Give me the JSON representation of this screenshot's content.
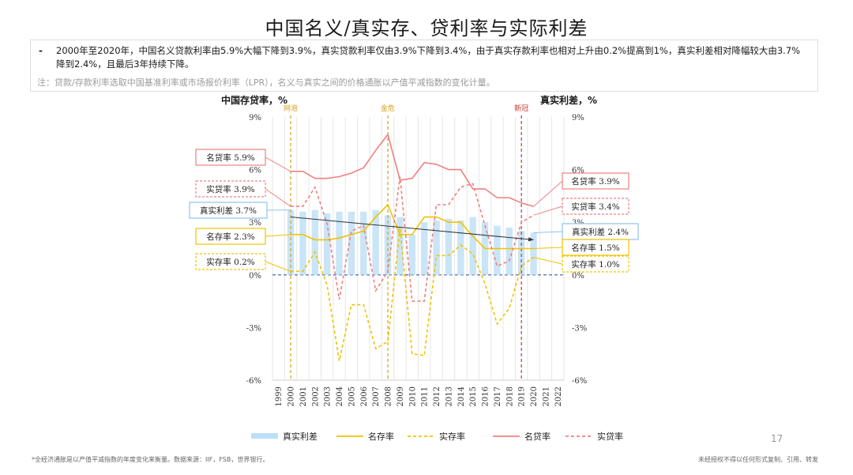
{
  "title": "中国名义/真实存、贷利率与实际利差",
  "note": {
    "bullet": "-",
    "main": "2000年至2020年，中国名义贷款利率由5.9%大幅下降到3.9%，真实贷款利率仅由3.9%下降到3.4%，由于真实存款利率也相对上升由0.2%提高到1%，真实利差相对降幅较大由3.7%降到2.4%，且最后3年持续下降。",
    "sub": "注：贷款/存款利率选取中国基准利率或市场报价利率（LPR），名义与真实之间的价格通胀以产值平减指数的变化计量。"
  },
  "footer": {
    "left": "*全经济通胀是以产值平减指数的年度变化来衡量。数据来源：IIF，FSB，世界银行。",
    "right": "未经授权不得以任何形式复制、引用、转发",
    "page": "17"
  },
  "chart_data": {
    "type": "line",
    "left_axis_title": "中国存贷率，%",
    "right_axis_title": "真实利差，%",
    "x": [
      "1999",
      "2000",
      "2001",
      "2002",
      "2003",
      "2004",
      "2005",
      "2006",
      "2007",
      "2008",
      "2009",
      "2010",
      "2011",
      "2012",
      "2013",
      "2014",
      "2015",
      "2016",
      "2017",
      "2018",
      "2019",
      "2020",
      "2021",
      "2022"
    ],
    "ylim": [
      -6,
      9
    ],
    "yticks": [
      "9%",
      "6%",
      "3%",
      "0%",
      "-3%",
      "-6%"
    ],
    "grid": true,
    "legend_position": "bottom",
    "events": [
      {
        "label": "网泡",
        "year": "2000",
        "color": "#d4a017"
      },
      {
        "label": "金危",
        "year": "2008",
        "color": "#d4a017"
      },
      {
        "label": "新冠",
        "year": "2019",
        "color": "#c0392b"
      }
    ],
    "series": [
      {
        "name": "真实利差",
        "kind": "bar",
        "color": "#bcdff5",
        "values": [
          null,
          3.7,
          3.6,
          3.7,
          3.5,
          3.6,
          3.6,
          3.6,
          3.7,
          3.4,
          3.3,
          2.3,
          3.0,
          3.1,
          3.2,
          3.1,
          3.3,
          3.0,
          2.8,
          2.7,
          2.5,
          2.4,
          null,
          null
        ]
      },
      {
        "name": "名存率",
        "kind": "line",
        "style": "solid",
        "color": "#f2c200",
        "values": [
          null,
          2.3,
          2.3,
          2.0,
          2.0,
          2.1,
          2.3,
          2.5,
          3.3,
          4.0,
          2.3,
          2.3,
          3.3,
          3.3,
          3.0,
          3.0,
          2.2,
          1.5,
          1.5,
          1.5,
          1.5,
          1.5,
          null,
          null
        ]
      },
      {
        "name": "实存率",
        "kind": "line",
        "style": "dashed",
        "color": "#f2c200",
        "values": [
          null,
          0.2,
          0.2,
          1.3,
          -0.6,
          -4.9,
          -1.7,
          -1.7,
          -4.2,
          -3.8,
          2.7,
          -4.5,
          -4.6,
          1.1,
          1.1,
          1.7,
          1.2,
          -0.5,
          -2.8,
          -1.9,
          0.5,
          1.0,
          null,
          null
        ]
      },
      {
        "name": "名贷率",
        "kind": "line",
        "style": "solid",
        "color": "#f08080",
        "values": [
          null,
          5.9,
          5.9,
          5.5,
          5.5,
          5.6,
          5.8,
          6.1,
          7.1,
          8.0,
          5.4,
          5.5,
          6.4,
          6.3,
          6.0,
          6.0,
          4.9,
          4.9,
          4.4,
          4.4,
          4.1,
          3.9,
          null,
          null
        ]
      },
      {
        "name": "实贷率",
        "kind": "line",
        "style": "dashed",
        "color": "#f08080",
        "values": [
          null,
          3.9,
          3.9,
          5.0,
          2.9,
          -1.4,
          2.5,
          2.8,
          -0.9,
          0.2,
          5.6,
          -1.5,
          -1.5,
          4.0,
          4.0,
          5.0,
          5.2,
          2.8,
          0.5,
          0.8,
          3.0,
          3.4,
          null,
          null
        ]
      }
    ],
    "trend": {
      "from": [
        "2000",
        3.3
      ],
      "to": [
        "2020",
        2.0
      ],
      "color": "#333333"
    },
    "annotations": [
      {
        "text": "名贷率 5.9%",
        "side": "left",
        "color": "#f08080",
        "style": "solid",
        "series": "名贷率"
      },
      {
        "text": "实贷率 3.9%",
        "side": "left",
        "color": "#f08080",
        "style": "dashed",
        "series": "实贷率"
      },
      {
        "text": "真实利差 3.7%",
        "side": "left",
        "color": "#8fc3ea",
        "style": "solid",
        "series": "真实利差"
      },
      {
        "text": "名存率 2.3%",
        "side": "left",
        "color": "#f2c200",
        "style": "solid",
        "series": "名存率"
      },
      {
        "text": "实存率 0.2%",
        "side": "left",
        "color": "#f2c200",
        "style": "dashed",
        "series": "实存率"
      },
      {
        "text": "名贷率 3.9%",
        "side": "right",
        "color": "#f08080",
        "style": "solid",
        "series": "名贷率"
      },
      {
        "text": "实贷率 3.4%",
        "side": "right",
        "color": "#f08080",
        "style": "dashed",
        "series": "实贷率"
      },
      {
        "text": "真实利差 2.4%",
        "side": "right",
        "color": "#8fc3ea",
        "style": "solid",
        "series": "真实利差"
      },
      {
        "text": "名存率 1.5%",
        "side": "right",
        "color": "#f2c200",
        "style": "solid",
        "series": "名存率"
      },
      {
        "text": "实存率 1.0%",
        "side": "right",
        "color": "#f2c200",
        "style": "dashed",
        "series": "实存率"
      }
    ]
  }
}
